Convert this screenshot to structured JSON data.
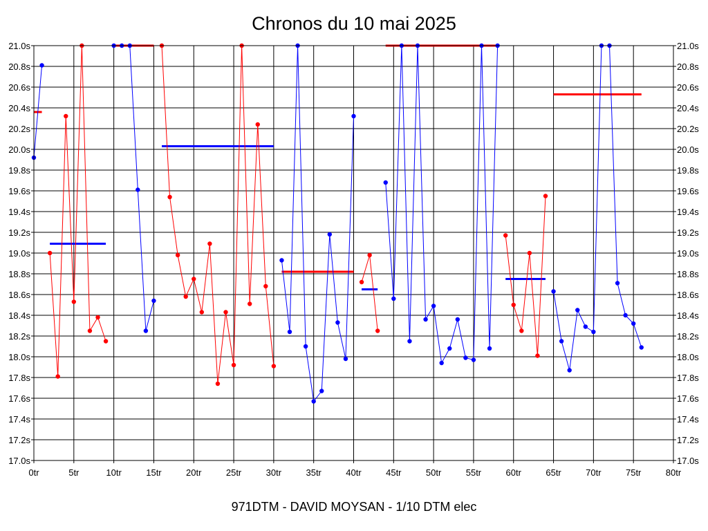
{
  "chart_data": {
    "type": "line",
    "title": "Chronos du 10 mai 2025",
    "subtitle": "971DTM - DAVID MOYSAN - 1/10 DTM elec",
    "xlabel": "",
    "ylabel": "",
    "xlim": [
      0,
      80
    ],
    "ylim": [
      17.0,
      21.0
    ],
    "x_ticks": [
      0,
      5,
      10,
      15,
      20,
      25,
      30,
      35,
      40,
      45,
      50,
      55,
      60,
      65,
      70,
      75,
      80
    ],
    "x_tick_labels": [
      "0tr",
      "5tr",
      "10tr",
      "15tr",
      "20tr",
      "25tr",
      "30tr",
      "35tr",
      "40tr",
      "45tr",
      "50tr",
      "55tr",
      "60tr",
      "65tr",
      "70tr",
      "75tr",
      "80tr"
    ],
    "y_ticks": [
      17.0,
      17.2,
      17.4,
      17.6,
      17.8,
      18.0,
      18.2,
      18.4,
      18.6,
      18.8,
      19.0,
      19.2,
      19.4,
      19.6,
      19.8,
      20.0,
      20.2,
      20.4,
      20.6,
      20.8,
      21.0
    ],
    "y_tick_labels": [
      "17.0s",
      "17.2s",
      "17.4s",
      "17.6s",
      "17.8s",
      "18.0s",
      "18.2s",
      "18.4s",
      "18.6s",
      "18.8s",
      "19.0s",
      "19.2s",
      "19.4s",
      "19.6s",
      "19.8s",
      "20.0s",
      "20.2s",
      "20.4s",
      "20.6s",
      "20.8s",
      "21.0s"
    ],
    "grid": true,
    "series": [
      {
        "color": "#0000ff",
        "x": [
          0,
          1
        ],
        "values": [
          19.92,
          20.81
        ]
      },
      {
        "color": "#ff0000",
        "x": [
          2,
          3,
          4,
          5,
          6,
          7,
          8,
          9
        ],
        "values": [
          19.0,
          17.81,
          20.32,
          18.53,
          21.0,
          18.25,
          18.38,
          18.15
        ]
      },
      {
        "color": "#0000ff",
        "x": [
          10,
          11,
          12,
          13,
          14,
          15
        ],
        "values": [
          21.0,
          21.0,
          21.0,
          19.61,
          18.25,
          18.54
        ]
      },
      {
        "color": "#ff0000",
        "x": [
          16,
          17,
          18,
          19,
          20,
          21,
          22,
          23,
          24,
          25,
          26,
          27,
          28,
          29,
          30
        ],
        "values": [
          21.0,
          19.54,
          18.98,
          18.58,
          18.75,
          18.43,
          19.09,
          17.74,
          18.43,
          17.92,
          21.0,
          18.51,
          20.24,
          18.68,
          17.91
        ]
      },
      {
        "color": "#0000ff",
        "x": [
          31,
          32,
          33,
          34,
          35,
          36,
          37,
          38,
          39,
          40
        ],
        "values": [
          18.93,
          18.24,
          21.0,
          18.1,
          17.57,
          17.67,
          19.18,
          18.33,
          17.98,
          20.32
        ]
      },
      {
        "color": "#ff0000",
        "x": [
          41,
          42,
          43
        ],
        "values": [
          18.72,
          18.98,
          18.25
        ]
      },
      {
        "color": "#0000ff",
        "x": [
          44,
          45,
          46,
          47,
          48,
          49,
          50,
          51,
          52,
          53,
          54,
          55,
          56,
          57,
          58
        ],
        "values": [
          19.68,
          18.56,
          21.0,
          18.15,
          21.0,
          18.36,
          18.49,
          17.94,
          18.08,
          18.36,
          17.99,
          17.97,
          21.0,
          18.08,
          21.0
        ]
      },
      {
        "color": "#ff0000",
        "x": [
          59,
          60,
          61,
          62,
          63,
          64
        ],
        "values": [
          19.17,
          18.5,
          18.25,
          19.0,
          18.01,
          19.55
        ]
      },
      {
        "color": "#0000ff",
        "x": [
          65,
          66,
          67,
          68,
          69,
          70,
          71,
          72,
          73,
          74,
          75,
          76
        ],
        "values": [
          18.63,
          18.15,
          17.87,
          18.45,
          18.29,
          18.24,
          21.0,
          21.0,
          18.71,
          18.4,
          18.32,
          18.09
        ]
      }
    ],
    "averages": [
      {
        "color": "#ff0000",
        "x_start": 0,
        "x_end": 1,
        "value": 20.36
      },
      {
        "color": "#0000ff",
        "x_start": 2,
        "x_end": 9,
        "value": 19.09
      },
      {
        "color": "#ff0000",
        "x_start": 10,
        "x_end": 15,
        "value": 21.0
      },
      {
        "color": "#0000ff",
        "x_start": 16,
        "x_end": 30,
        "value": 20.03
      },
      {
        "color": "#ff0000",
        "x_start": 31,
        "x_end": 40,
        "value": 18.82
      },
      {
        "color": "#0000ff",
        "x_start": 41,
        "x_end": 43,
        "value": 18.65
      },
      {
        "color": "#ff0000",
        "x_start": 44,
        "x_end": 58,
        "value": 21.0
      },
      {
        "color": "#0000ff",
        "x_start": 59,
        "x_end": 64,
        "value": 18.75
      },
      {
        "color": "#ff0000",
        "x_start": 65,
        "x_end": 76,
        "value": 20.53
      }
    ]
  }
}
